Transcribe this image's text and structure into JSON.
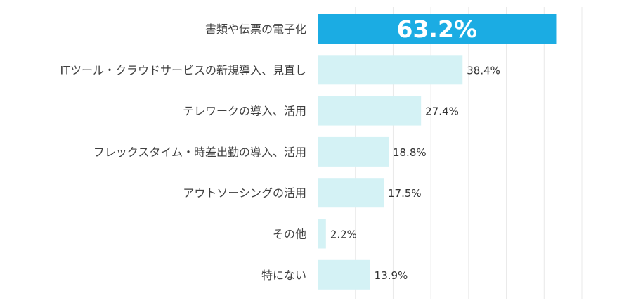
{
  "chart_data": {
    "type": "bar",
    "orientation": "horizontal",
    "title": "",
    "xlabel": "",
    "ylabel": "",
    "xlim": [
      0,
      70
    ],
    "grid": true,
    "categories": [
      "書類や伝票の電子化",
      "ITツール・クラウドサービスの新規導入、見直し",
      "テレワークの導入、活用",
      "フレックスタイム・時差出勤の導入、活用",
      "アウトソーシングの活用",
      "その他",
      "特にない"
    ],
    "values": [
      63.2,
      38.4,
      27.4,
      18.8,
      17.5,
      2.2,
      13.9
    ],
    "value_labels": [
      "63.2%",
      "38.4%",
      "27.4%",
      "18.8%",
      "17.5%",
      "2.2%",
      "13.9%"
    ],
    "highlight_index": 0
  },
  "colors": {
    "highlight_bar": "#1BACE3",
    "bar": "#D4F2F5",
    "grid": "#E8E8E8",
    "label_text": "#404040",
    "value_text": "#333333",
    "highlight_value_text": "#FFFFFF"
  }
}
